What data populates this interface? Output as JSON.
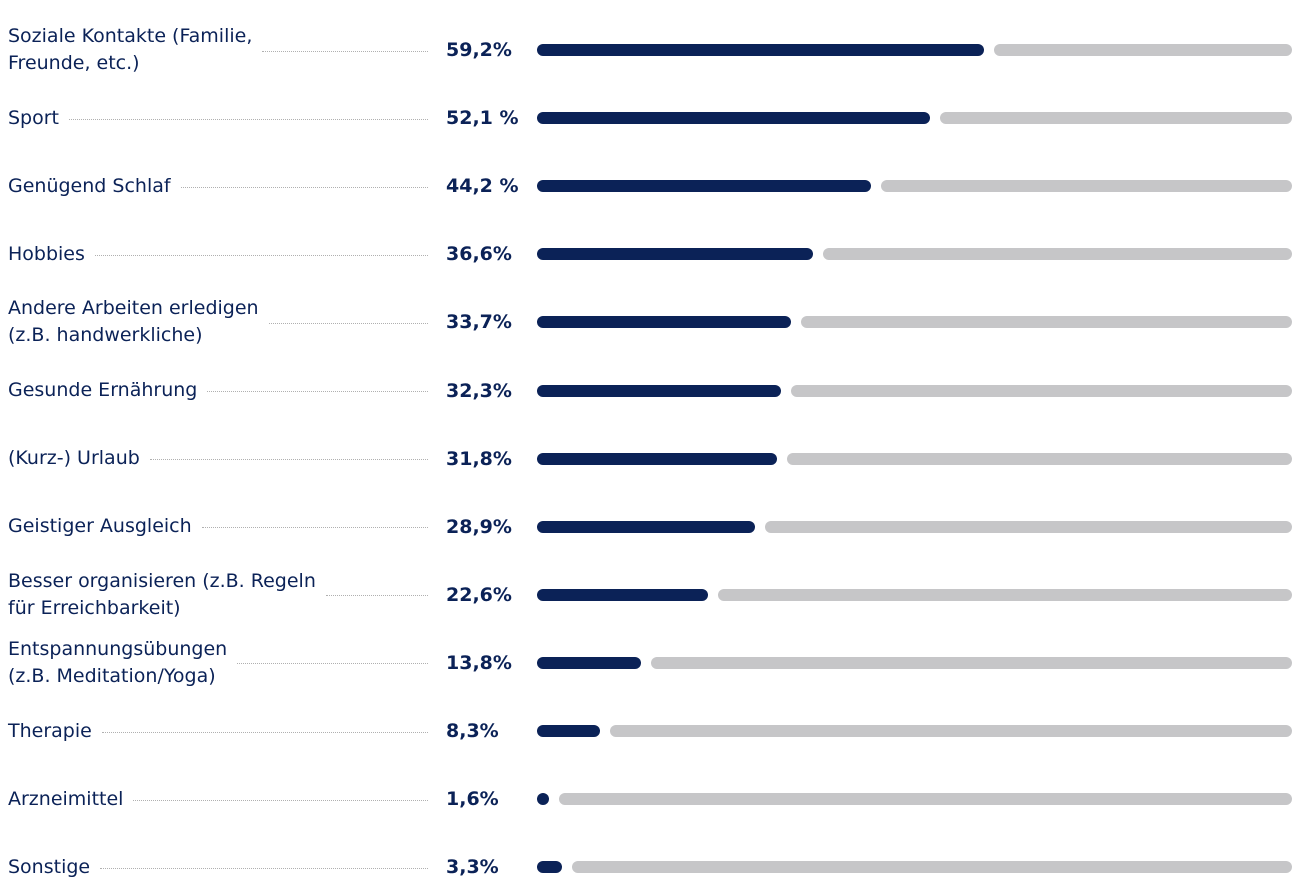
{
  "chart_data": {
    "type": "bar",
    "orientation": "horizontal",
    "categories": [
      "Soziale Kontakte (Familie,\nFreunde, etc.)",
      "Sport",
      "Genügend Schlaf",
      "Hobbies",
      "Andere Arbeiten erledigen\n(z.B. handwerkliche)",
      "Gesunde Ernährung",
      "(Kurz-) Urlaub",
      "Geistiger Ausgleich",
      "Besser organisieren (z.B. Regeln\nfür Erreichbarkeit)",
      "Entspannungsübungen\n(z.B. Meditation/Yoga)",
      "Therapie",
      "Arzneimittel",
      "Sonstige"
    ],
    "values": [
      59.2,
      52.1,
      44.2,
      36.6,
      33.7,
      32.3,
      31.8,
      28.9,
      22.6,
      13.8,
      8.3,
      1.6,
      3.3
    ],
    "value_labels": [
      "59,2%",
      "52,1 %",
      "44,2 %",
      "36,6%",
      "33,7%",
      "32,3%",
      "31,8%",
      "28,9%",
      "22,6%",
      "13,8%",
      "8,3%",
      "1,6%",
      "3,3%"
    ],
    "xlim": [
      0,
      100
    ],
    "color": "#0b2257",
    "track_color": "#c6c6c8"
  }
}
